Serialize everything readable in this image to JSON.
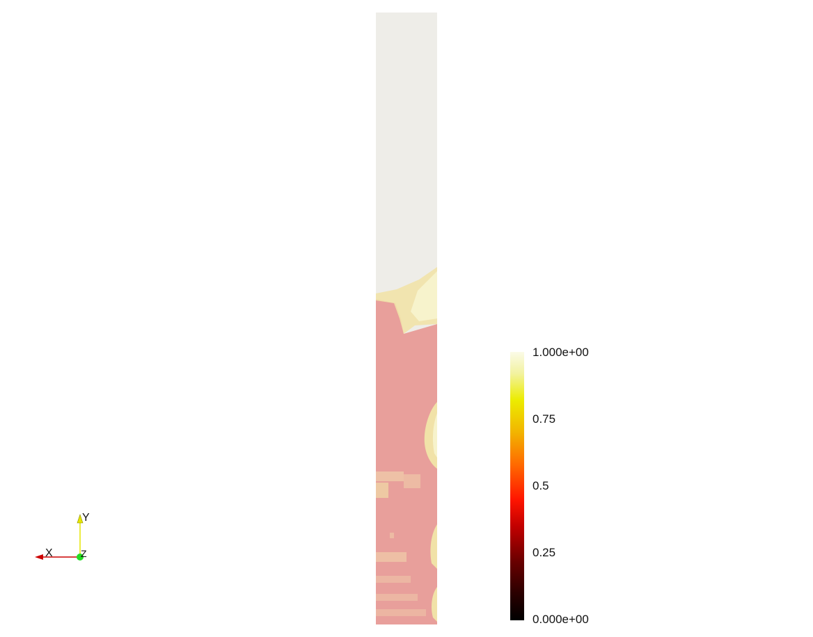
{
  "scene": {
    "field": {
      "colors": {
        "upper": "#eeede8",
        "lower": "#e89f9b",
        "interface": "#f1e2a8",
        "highlight": "#f7f3cc"
      }
    },
    "colorbar": {
      "max_label": "1.000e+00",
      "tick_075": "0.75",
      "tick_05": "0.5",
      "tick_025": "0.25",
      "min_label": "0.000e+00",
      "colormap": "black-red-yellow-white"
    },
    "orientation_axes": {
      "x_label": "X",
      "y_label": "Y",
      "z_label": "Z",
      "colors": {
        "x": "#cc0000",
        "y": "#e6e600",
        "z": "#22dd22"
      }
    }
  }
}
